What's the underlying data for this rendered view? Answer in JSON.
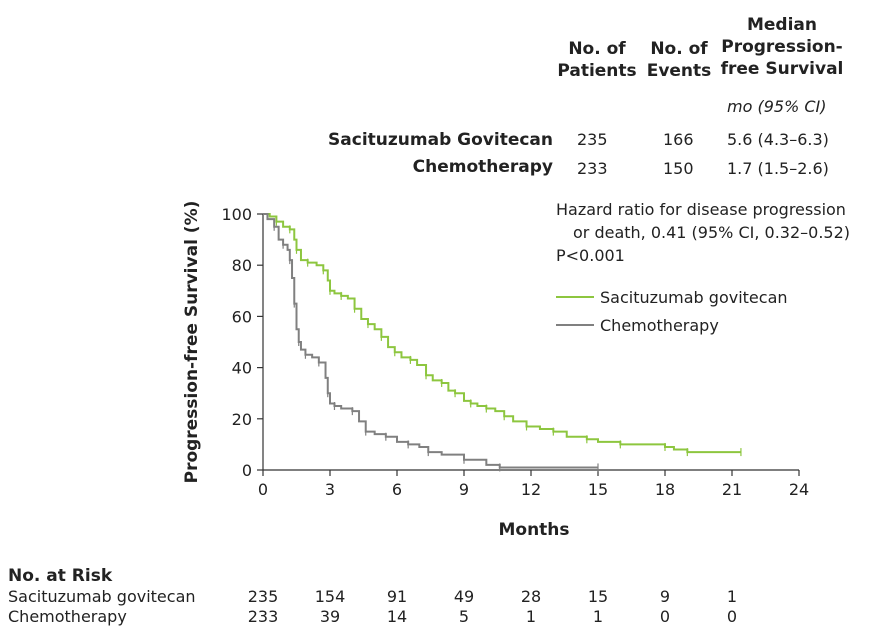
{
  "summary_table": {
    "headers": {
      "patients": [
        "No. of",
        "Patients"
      ],
      "events": [
        "No. of",
        "Events"
      ],
      "median": [
        "Median",
        "Progression-",
        "free Survival"
      ]
    },
    "median_unit": "mo (95% CI)",
    "rows": [
      {
        "label": "Sacituzumab Govitecan",
        "patients": "235",
        "events": "166",
        "median": "5.6 (4.3–6.3)"
      },
      {
        "label": "Chemotherapy",
        "patients": "233",
        "events": "150",
        "median": "1.7 (1.5–2.6)"
      }
    ]
  },
  "annotation": {
    "hr_line1": "Hazard ratio for disease progression",
    "hr_line2": "or death, 0.41 (95% CI, 0.32–0.52)",
    "p_value": "P<0.001"
  },
  "risk_table": {
    "title": "No. at Risk",
    "rows": [
      {
        "label": "Sacituzumab govitecan",
        "values": [
          "235",
          "154",
          "91",
          "49",
          "28",
          "15",
          "9",
          "1"
        ]
      },
      {
        "label": "Chemotherapy",
        "values": [
          "233",
          "39",
          "14",
          "5",
          "1",
          "1",
          "0",
          "0"
        ]
      }
    ]
  },
  "colors": {
    "sg": "#8dc63f",
    "chemo": "#808080",
    "axis": "#333333"
  },
  "chart_data": {
    "type": "line",
    "title": "",
    "xlabel": "Months",
    "ylabel": "Progression-free Survival (%)",
    "xlim": [
      0,
      24
    ],
    "ylim": [
      0,
      100
    ],
    "xticks": [
      0,
      3,
      6,
      9,
      12,
      15,
      18,
      21,
      24
    ],
    "yticks": [
      0,
      20,
      40,
      60,
      80,
      100
    ],
    "legend": {
      "position": "top-right",
      "entries": [
        "Sacituzumab govitecan",
        "Chemotherapy"
      ]
    },
    "series": [
      {
        "name": "Sacituzumab govitecan",
        "x": [
          0,
          0.3,
          0.6,
          0.9,
          1.2,
          1.4,
          1.5,
          1.7,
          2.0,
          2.4,
          2.7,
          2.9,
          3.0,
          3.2,
          3.5,
          3.8,
          4.1,
          4.4,
          4.7,
          5.0,
          5.3,
          5.6,
          5.9,
          6.2,
          6.6,
          6.9,
          7.3,
          7.6,
          8.0,
          8.3,
          8.6,
          9.0,
          9.3,
          9.6,
          10.0,
          10.4,
          10.8,
          11.2,
          11.8,
          12.4,
          13.0,
          13.6,
          14.5,
          15.0,
          16.0,
          17.0,
          18.0,
          18.4,
          19.0,
          20.0,
          21.4
        ],
        "y": [
          100,
          99,
          97,
          95,
          94,
          90,
          86,
          82,
          81,
          80,
          78,
          74,
          70,
          69,
          68,
          67,
          63,
          59,
          57,
          55,
          52,
          48,
          46,
          44,
          43,
          41,
          37,
          35,
          34,
          31,
          30,
          27,
          26,
          25,
          24,
          23,
          21,
          19,
          17,
          16,
          15,
          13,
          12,
          11,
          10,
          10,
          9,
          8,
          7,
          7,
          7
        ]
      },
      {
        "name": "Chemotherapy",
        "x": [
          0,
          0.2,
          0.5,
          0.7,
          0.9,
          1.1,
          1.2,
          1.3,
          1.4,
          1.5,
          1.6,
          1.7,
          1.9,
          2.2,
          2.5,
          2.8,
          2.9,
          3.0,
          3.2,
          3.5,
          4.0,
          4.3,
          4.6,
          5.0,
          5.5,
          6.0,
          6.5,
          7.0,
          7.4,
          8.0,
          9.0,
          10.0,
          10.6,
          12.0,
          15.0
        ],
        "y": [
          100,
          98,
          95,
          90,
          88,
          86,
          82,
          75,
          65,
          55,
          50,
          47,
          45,
          44,
          42,
          36,
          30,
          26,
          25,
          24,
          23,
          19,
          15,
          14,
          13,
          11,
          10,
          9,
          7,
          6,
          4,
          2,
          1,
          1,
          1
        ]
      }
    ]
  }
}
